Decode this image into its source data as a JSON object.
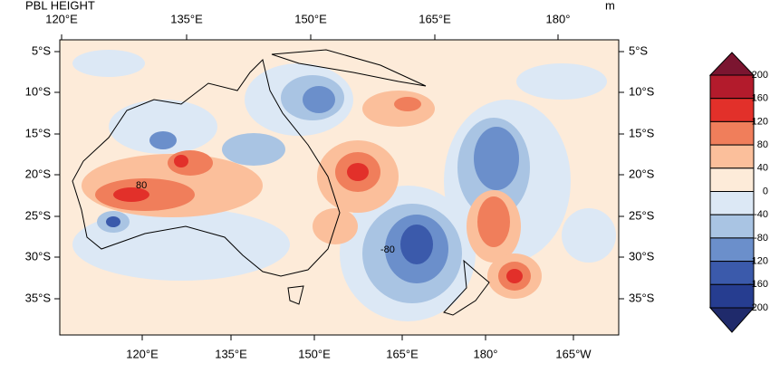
{
  "header": {
    "title": "PBL HEIGHT",
    "units": "m"
  },
  "axes": {
    "top": [
      "120°E",
      "135°E",
      "150°E",
      "165°E",
      "180°"
    ],
    "bottom": [
      "120°E",
      "135°E",
      "150°E",
      "165°E",
      "180°",
      "165°W"
    ],
    "left": [
      "5°S",
      "10°S",
      "15°S",
      "20°S",
      "25°S",
      "30°S",
      "35°S"
    ],
    "right": [
      "5°S",
      "10°S",
      "15°S",
      "20°S",
      "25°S",
      "30°S",
      "35°S"
    ]
  },
  "colorbar": {
    "levels": [
      200,
      160,
      120,
      80,
      40,
      0,
      -40,
      -80,
      -120,
      -160,
      -200
    ],
    "colors": [
      "#7b1530",
      "#b31b2c",
      "#e2302a",
      "#f07e5b",
      "#fbbf9b",
      "#fdebd9",
      "#dce8f5",
      "#a9c4e3",
      "#6b8fcb",
      "#3b5aab",
      "#263d90",
      "#1f2a6b"
    ]
  },
  "contour_labels": [
    "80",
    "-80"
  ]
}
